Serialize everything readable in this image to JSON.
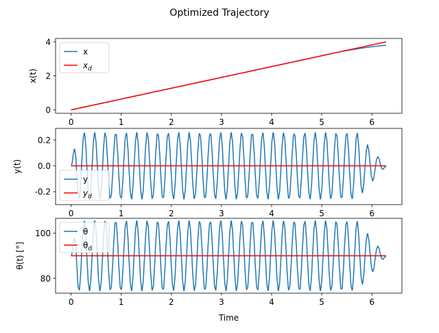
{
  "figure": {
    "title": "Optimized Trajectory"
  },
  "chart_data": [
    {
      "type": "line",
      "panel": "top",
      "ylabel": "x(t)",
      "xlabel": "",
      "xlim": [
        -0.31,
        6.6
      ],
      "ylim": [
        -0.2,
        4.2
      ],
      "xticks": [
        0,
        1,
        2,
        3,
        4,
        5,
        6
      ],
      "yticks": [
        0,
        2,
        4
      ],
      "legend_position": "upper-left",
      "series": [
        {
          "name": "x",
          "color": "#1f77b4",
          "kind": "x-actual",
          "t_end": 6.283,
          "slope": 0.6366,
          "end_value": 3.8
        },
        {
          "name": "x_d",
          "color": "#ff0000",
          "kind": "x-desired",
          "t_end": 6.283,
          "slope": 0.6366
        }
      ]
    },
    {
      "type": "line",
      "panel": "middle",
      "ylabel": "y(t)",
      "xlabel": "",
      "xlim": [
        -0.31,
        6.6
      ],
      "ylim": [
        -0.3,
        0.29
      ],
      "xticks": [
        0,
        1,
        2,
        3,
        4,
        5,
        6
      ],
      "yticks": [
        -0.2,
        0.0,
        0.2
      ],
      "legend_position": "lower-left",
      "series": [
        {
          "name": "y",
          "color": "#1f77b4",
          "kind": "oscillation",
          "amplitude": 0.25,
          "cycles": 30,
          "t_end": 6.283,
          "decay_start": 5.7
        },
        {
          "name": "y_d",
          "color": "#ff0000",
          "kind": "constant",
          "value": 0.0,
          "t_end": 6.283
        }
      ]
    },
    {
      "type": "line",
      "panel": "bottom",
      "ylabel": "θ(t) [°]",
      "xlabel": "Time",
      "xlim": [
        -0.31,
        6.6
      ],
      "ylim": [
        73.5,
        106.5
      ],
      "xticks": [
        0,
        1,
        2,
        3,
        4,
        5,
        6
      ],
      "yticks": [
        80,
        100
      ],
      "legend_position": "upper-left",
      "series": [
        {
          "name": "θ",
          "color": "#1f77b4",
          "kind": "oscillation",
          "center": 90,
          "amplitude": 15,
          "cycles": 30,
          "t_end": 6.283,
          "decay_start": 5.7
        },
        {
          "name": "θ_d",
          "color": "#ff0000",
          "kind": "constant",
          "value": 90,
          "t_end": 6.283
        }
      ]
    }
  ]
}
